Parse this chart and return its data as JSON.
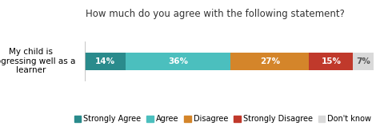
{
  "title": "How much do you agree with the following statement?",
  "ylabel": "My child is\nprogressing well as a\nlearner",
  "segments": [
    {
      "label": "Strongly Agree",
      "value": 14,
      "color": "#2a8b8c",
      "text_color": "#ffffff"
    },
    {
      "label": "Agree",
      "value": 36,
      "color": "#4bbfbe",
      "text_color": "#ffffff"
    },
    {
      "label": "Disagree",
      "value": 27,
      "color": "#d4852a",
      "text_color": "#ffffff"
    },
    {
      "label": "Strongly Disagree",
      "value": 15,
      "color": "#c0392b",
      "text_color": "#ffffff"
    },
    {
      "label": "Don't know",
      "value": 7,
      "color": "#d9d9d9",
      "text_color": "#555555"
    }
  ],
  "title_fontsize": 8.5,
  "bar_label_fontsize": 7.5,
  "legend_fontsize": 7,
  "ylabel_fontsize": 7.5,
  "bar_height": 0.45
}
